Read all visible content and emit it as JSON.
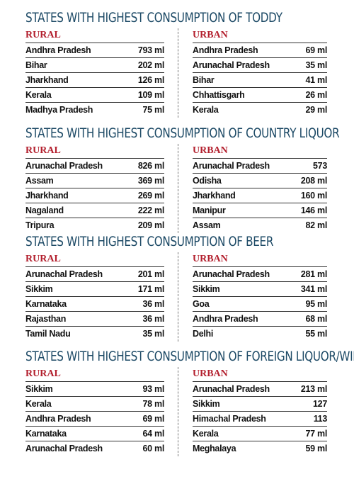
{
  "sections": [
    {
      "title": "STATES WITH HIGHEST CONSUMPTION OF TODDY",
      "rural_label": "RURAL",
      "urban_label": "URBAN",
      "rural": [
        {
          "state": "Andhra Pradesh",
          "value": "793 ml"
        },
        {
          "state": "Bihar",
          "value": "202 ml"
        },
        {
          "state": "Jharkhand",
          "value": "126 ml"
        },
        {
          "state": "Kerala",
          "value": "109 ml"
        },
        {
          "state": "Madhya Pradesh",
          "value": "75 ml"
        }
      ],
      "urban": [
        {
          "state": "Andhra Pradesh",
          "value": "69 ml"
        },
        {
          "state": "Arunachal Pradesh",
          "value": "35 ml"
        },
        {
          "state": "Bihar",
          "value": "41 ml"
        },
        {
          "state": "Chhattisgarh",
          "value": "26 ml"
        },
        {
          "state": "Kerala",
          "value": "29 ml"
        }
      ]
    },
    {
      "title": "STATES WITH HIGHEST CONSUMPTION OF COUNTRY LIQUOR",
      "rural_label": "RURAL",
      "urban_label": "URBAN",
      "rural": [
        {
          "state": "Arunachal Pradesh",
          "value": "826 ml"
        },
        {
          "state": "Assam",
          "value": "369 ml"
        },
        {
          "state": "Jharkhand",
          "value": "269 ml"
        },
        {
          "state": "Nagaland",
          "value": "222 ml"
        },
        {
          "state": "Tripura",
          "value": "209 ml"
        }
      ],
      "urban": [
        {
          "state": "Arunachal Pradesh",
          "value": "573"
        },
        {
          "state": "Odisha",
          "value": "208 ml"
        },
        {
          "state": "Jharkhand",
          "value": "160 ml"
        },
        {
          "state": "Manipur",
          "value": "146 ml"
        },
        {
          "state": "Assam",
          "value": "82 ml"
        }
      ]
    },
    {
      "title": "STATES WITH HIGHEST CONSUMPTION OF BEER",
      "rural_label": "RURAL",
      "urban_label": "URBAN",
      "rural": [
        {
          "state": "Arunachal Pradesh",
          "value": "201 ml"
        },
        {
          "state": "Sikkim",
          "value": "171 ml"
        },
        {
          "state": "Karnataka",
          "value": "36 ml"
        },
        {
          "state": "Rajasthan",
          "value": "36 ml"
        },
        {
          "state": "Tamil Nadu",
          "value": "35 ml"
        }
      ],
      "urban": [
        {
          "state": "Arunachal Pradesh",
          "value": "281 ml"
        },
        {
          "state": "Sikkim",
          "value": "341 ml"
        },
        {
          "state": "Goa",
          "value": "95 ml"
        },
        {
          "state": "Andhra Pradesh",
          "value": "68 ml"
        },
        {
          "state": "Delhi",
          "value": "55 ml"
        }
      ]
    },
    {
      "title": "STATES WITH HIGHEST CONSUMPTION OF FOREIGN LIQUOR/WINE",
      "rural_label": "RURAL",
      "urban_label": "URBAN",
      "rural": [
        {
          "state": "Sikkim",
          "value": "93 ml"
        },
        {
          "state": "Kerala",
          "value": "78 ml"
        },
        {
          "state": "Andhra Pradesh",
          "value": "69 ml"
        },
        {
          "state": "Karnataka",
          "value": "64 ml"
        },
        {
          "state": "Arunachal Pradesh",
          "value": "60 ml"
        }
      ],
      "urban": [
        {
          "state": "Arunachal Pradesh",
          "value": "213 ml"
        },
        {
          "state": "Sikkim",
          "value": "127"
        },
        {
          "state": "Himachal Pradesh",
          "value": "113"
        },
        {
          "state": "Kerala",
          "value": "77 ml"
        },
        {
          "state": "Meghalaya",
          "value": "59 ml"
        }
      ]
    }
  ]
}
